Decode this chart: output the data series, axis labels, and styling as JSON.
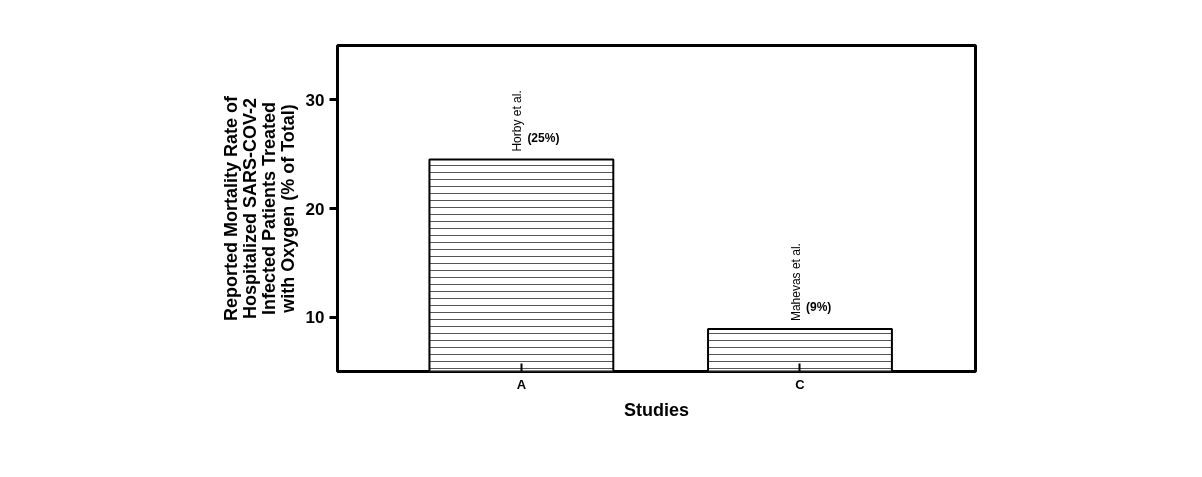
{
  "chart_data": {
    "type": "bar",
    "xlabel": "Studies",
    "ylabel": "Reported Mortality Rate of\nHospitalized SARS-COV-2\nInfected Patients Treated\nwith Oxygen (% of Total)",
    "categories": [
      "A",
      "C"
    ],
    "values": [
      24.5,
      8.9
    ],
    "value_labels": [
      "(25%)",
      "(9%)"
    ],
    "color": "#ffffff",
    "ylim": [
      5,
      35
    ],
    "yticks": [
      10,
      20,
      30
    ],
    "grid": false,
    "annotations": [
      "Horby et al.",
      "Mahevas et al."
    ]
  }
}
